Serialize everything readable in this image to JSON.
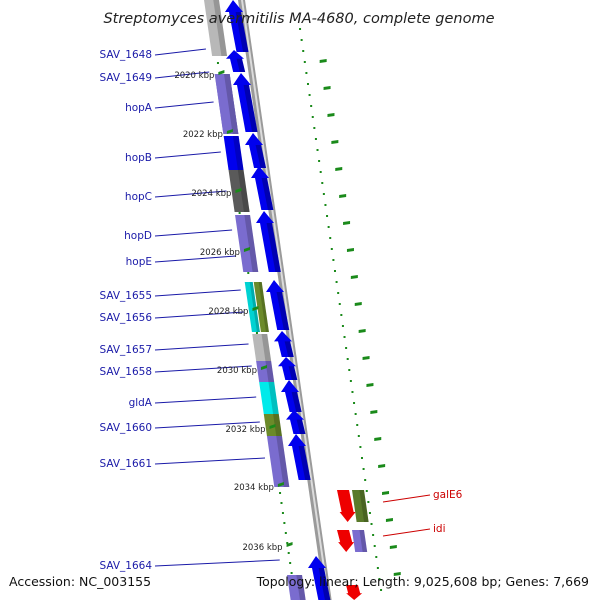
{
  "title": "Streptomyces avermitilis MA-4680, complete genome",
  "footer": {
    "accession": "Accession: NC_003155",
    "topology": "Topology: linear; Length: 9,025,608 bp; Genes: 7,669"
  },
  "colors": {
    "gene_label": "#1a1aa8",
    "rev_label": "#cc0000",
    "forward_arrow": "#0000ee",
    "reverse_arrow": "#ee0000",
    "tick": "#1a8a1a",
    "backbone": "#9a9a9a"
  },
  "ruler_ticks": [
    {
      "text": "2020 kbp"
    },
    {
      "text": "2022 kbp"
    },
    {
      "text": "2024 kbp"
    },
    {
      "text": "2026 kbp"
    },
    {
      "text": "2028 kbp"
    },
    {
      "text": "2030 kbp"
    },
    {
      "text": "2032 kbp"
    },
    {
      "text": "2034 kbp"
    },
    {
      "text": "2036 kbp"
    }
  ],
  "genes_forward": [
    {
      "name": "SAV_1648",
      "cog_color": "#b8b8b8"
    },
    {
      "name": "SAV_1649",
      "cog_color": "#7a6ccf"
    },
    {
      "name": "hopA",
      "cog_color": "#7a6ccf"
    },
    {
      "name": "hopB",
      "cog_color": "#0000ee"
    },
    {
      "name": "hopC",
      "cog_color": "#5a5a5a"
    },
    {
      "name": "hopD",
      "cog_color": "#7a6ccf"
    },
    {
      "name": "hopE",
      "cog_color": "#7a6ccf"
    },
    {
      "name": "SAV_1655",
      "cog_color": "#00d2d2"
    },
    {
      "name": "SAV_1656",
      "cog_color": "#6b8a2a"
    },
    {
      "name": "SAV_1657",
      "cog_color": "#b8b8b8"
    },
    {
      "name": "SAV_1658",
      "cog_color": "#7a6ccf"
    },
    {
      "name": "gldA",
      "cog_color": "#00eaea"
    },
    {
      "name": "SAV_1660",
      "cog_color": "#6b8a2a"
    },
    {
      "name": "SAV_1661",
      "cog_color": "#7a6ccf"
    },
    {
      "name": "SAV_1664",
      "cog_color": "#7a6ccf"
    }
  ],
  "genes_reverse": [
    {
      "name": "galE6",
      "cog_color": "#5a7a2a"
    },
    {
      "name": "idi",
      "cog_color": "#7a6ccf"
    }
  ]
}
